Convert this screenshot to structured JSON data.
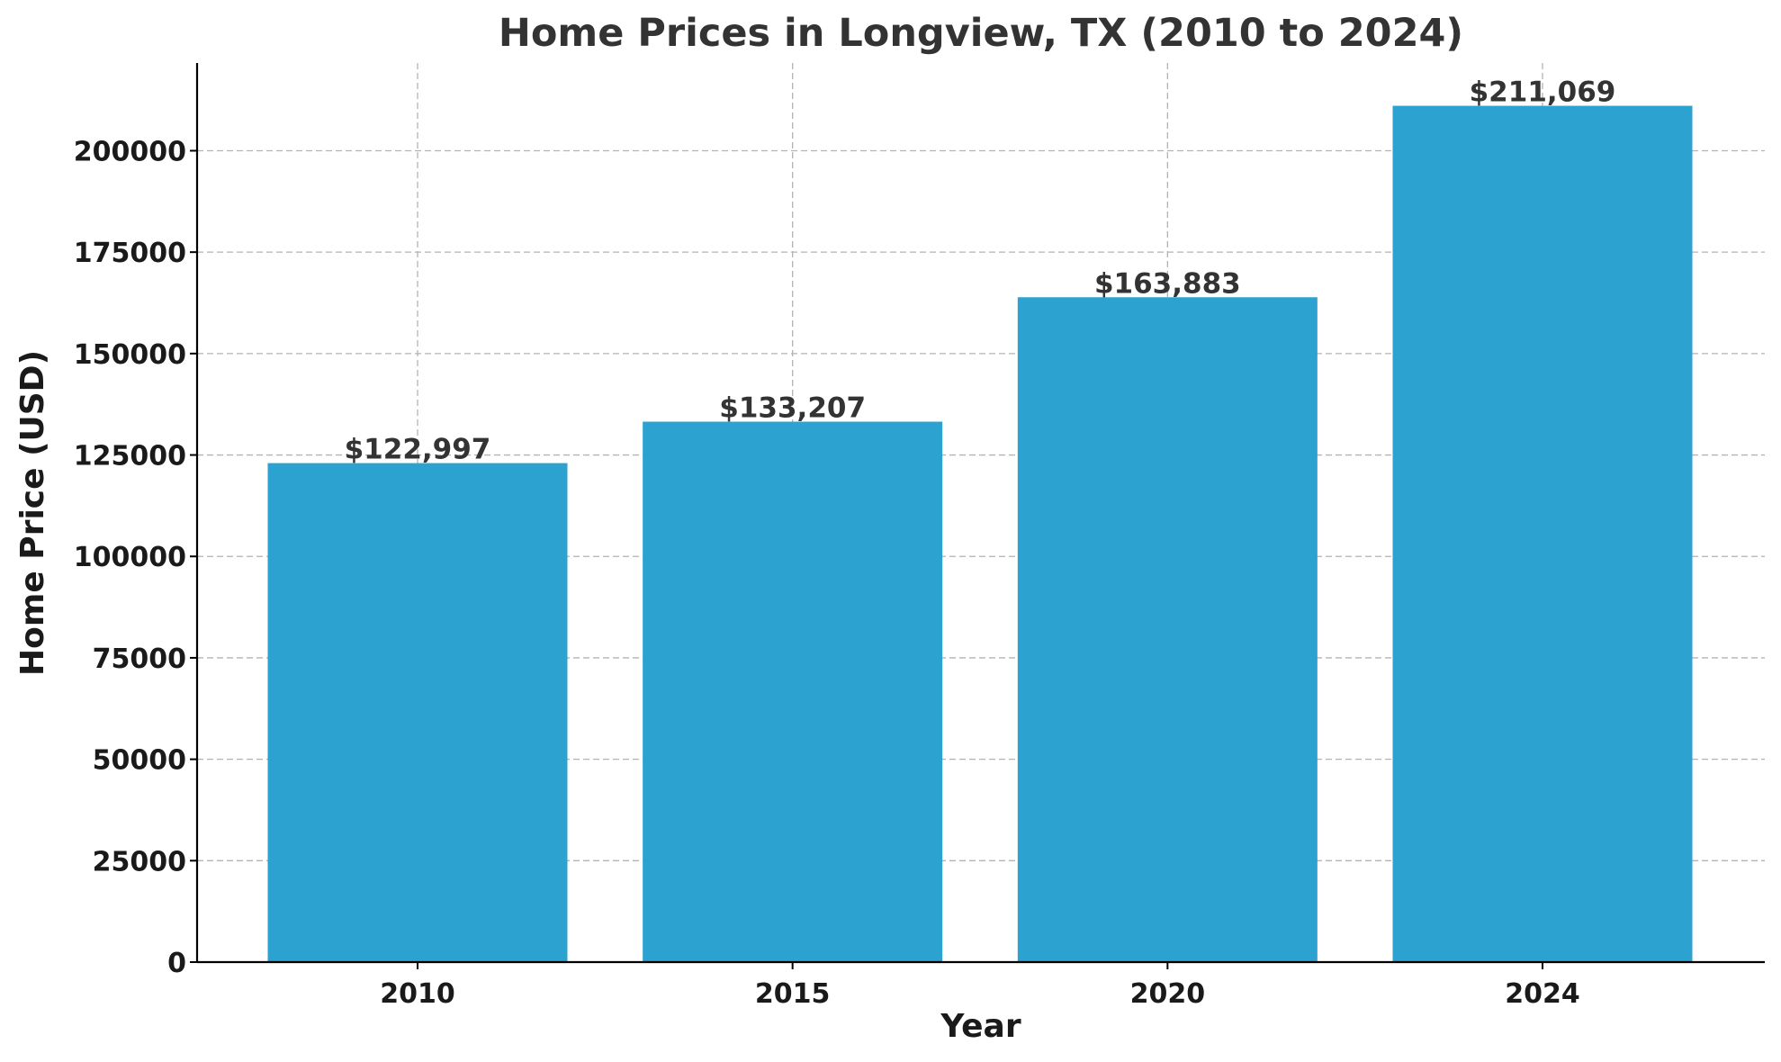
{
  "chart_data": {
    "type": "bar",
    "title": "Home Prices in Longview, TX (2010 to 2024)",
    "xlabel": "Year",
    "ylabel": "Home Price (USD)",
    "categories": [
      "2010",
      "2015",
      "2020",
      "2024"
    ],
    "values": [
      122997,
      133207,
      163883,
      211069
    ],
    "data_labels": [
      "$122,997",
      "$133,207",
      "$163,883",
      "$211,069"
    ],
    "ylim": [
      0,
      221622
    ],
    "yticks": [
      0,
      25000,
      50000,
      75000,
      100000,
      125000,
      150000,
      175000,
      200000
    ],
    "ytick_labels": [
      "0",
      "25000",
      "50000",
      "75000",
      "100000",
      "125000",
      "150000",
      "175000",
      "200000"
    ],
    "grid": true,
    "bar_color": "#2ba2cf",
    "legend": "none"
  }
}
